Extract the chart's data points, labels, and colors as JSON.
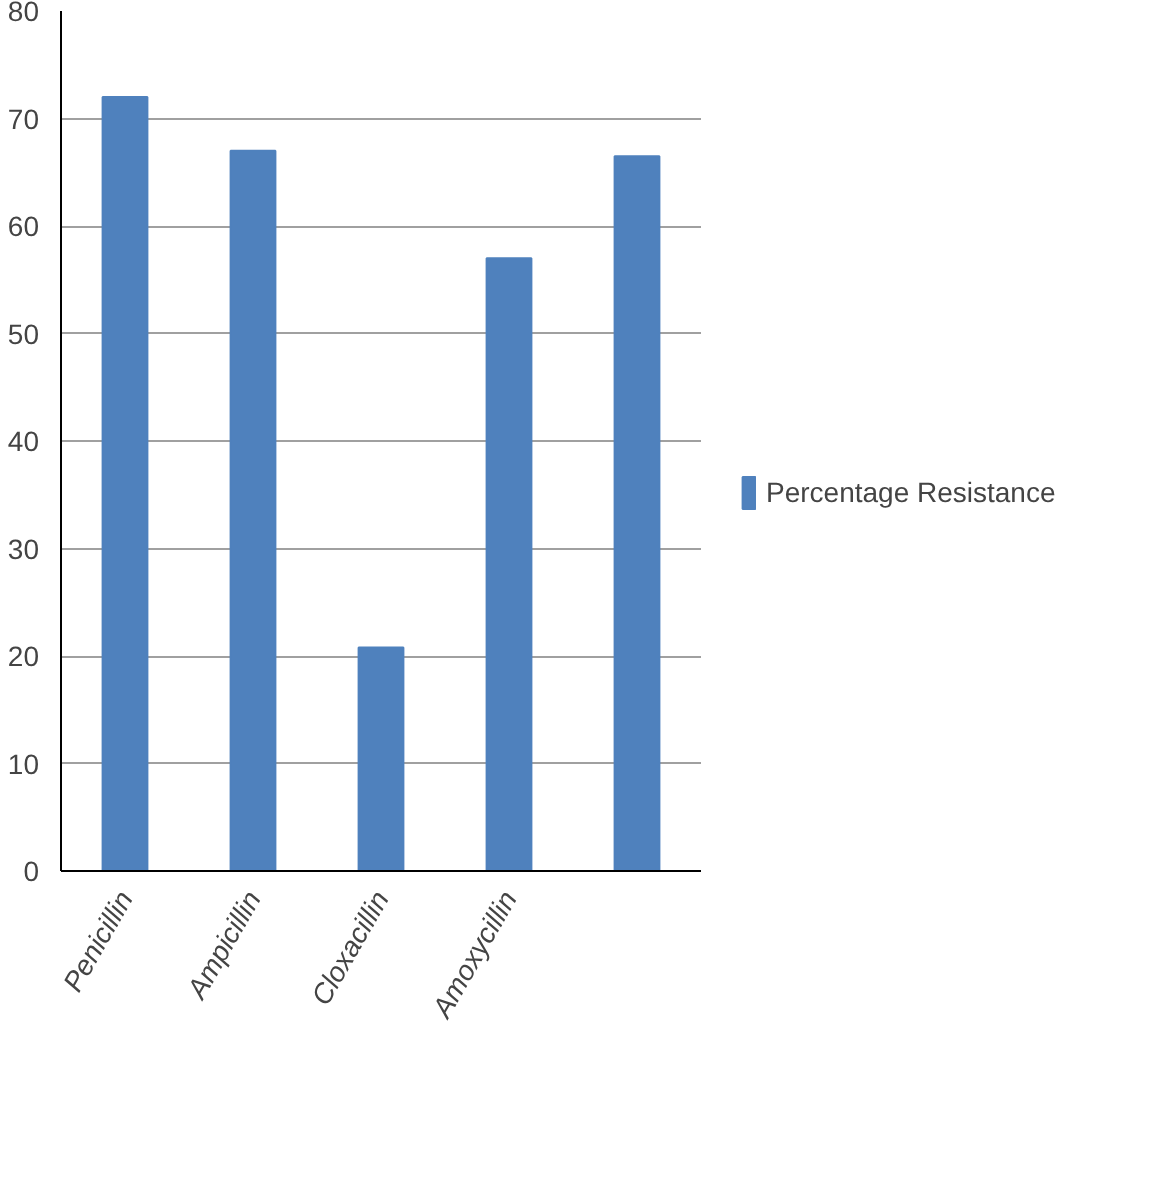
{
  "chart_data": {
    "type": "bar",
    "categories": [
      "Penicillin",
      "Ampicillin",
      "Cloxacillin",
      "Amoxycillin",
      null
    ],
    "series": [
      {
        "name": "Percentage Resistance",
        "color": "#4f81bd",
        "values": [
          72,
          67,
          20.8,
          57,
          66.5
        ]
      }
    ],
    "ylim": [
      0,
      80
    ],
    "yticks": [
      0,
      10,
      20,
      30,
      40,
      50,
      60,
      70,
      80
    ],
    "grid": "y",
    "legend": "right"
  }
}
